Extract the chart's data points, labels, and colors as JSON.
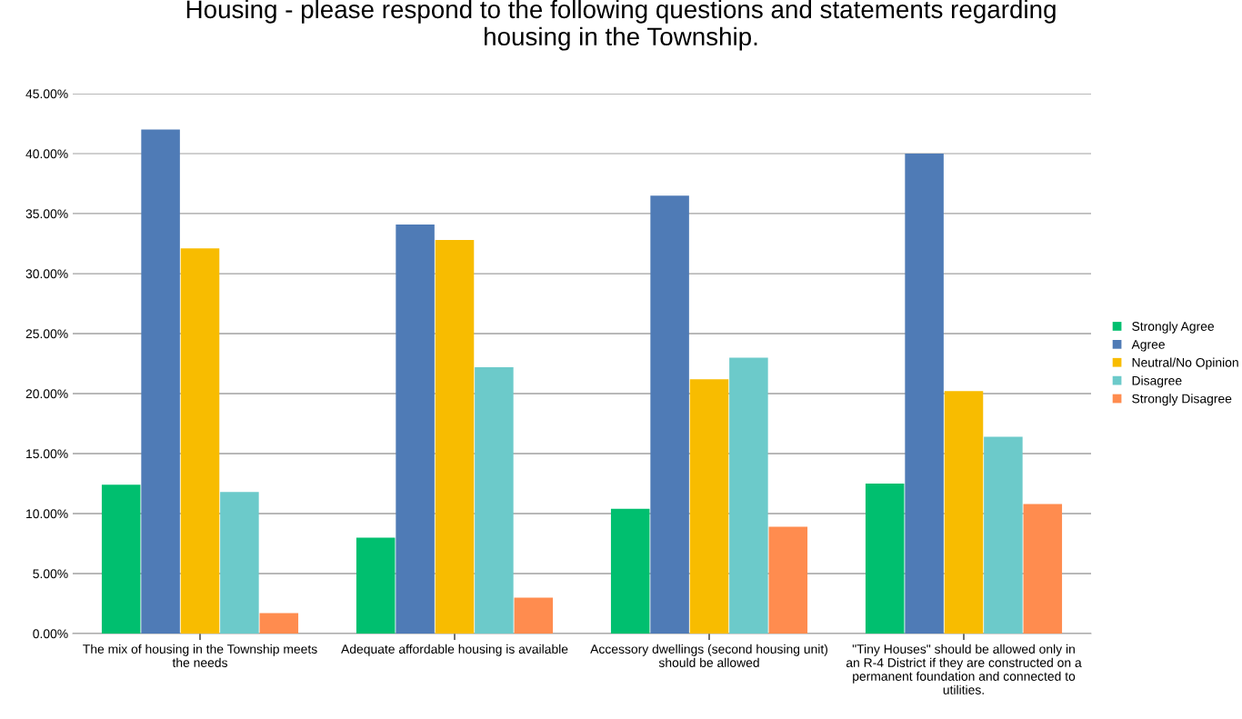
{
  "chart_data": {
    "type": "bar",
    "title": "Housing - please respond to the following questions and statements regarding\nhousing in the Township.",
    "categories": [
      "The mix of housing in the Township meets\nthe needs",
      "Adequate affordable housing is available",
      "Accessory dwellings (second housing unit)\nshould be allowed",
      "\"Tiny Houses\" should be allowed only in\nan R-4 District if they are constructed on a\npermanent foundation and connected to\nutilities."
    ],
    "series": [
      {
        "name": "Strongly Agree",
        "color": "#00bf6f",
        "values": [
          12.4,
          8.0,
          10.4,
          12.5
        ]
      },
      {
        "name": "Agree",
        "color": "#4f7bb6",
        "values": [
          42.0,
          34.1,
          36.5,
          40.0
        ]
      },
      {
        "name": "Neutral/No Opinion",
        "color": "#f8bc00",
        "values": [
          32.1,
          32.8,
          21.2,
          20.2
        ]
      },
      {
        "name": "Disagree",
        "color": "#6ccaca",
        "values": [
          11.8,
          22.2,
          23.0,
          16.4
        ]
      },
      {
        "name": "Strongly Disagree",
        "color": "#ff8c4f",
        "values": [
          1.7,
          3.0,
          8.9,
          10.8
        ]
      }
    ],
    "ylim": [
      0,
      45
    ],
    "yticks": [
      {
        "value": 0,
        "label": "0.00%"
      },
      {
        "value": 5,
        "label": "5.00%"
      },
      {
        "value": 10,
        "label": "10.00%"
      },
      {
        "value": 15,
        "label": "15.00%"
      },
      {
        "value": 20,
        "label": "20.00%"
      },
      {
        "value": 25,
        "label": "25.00%"
      },
      {
        "value": 30,
        "label": "30.00%"
      },
      {
        "value": 35,
        "label": "35.00%"
      },
      {
        "value": 40,
        "label": "40.00%"
      },
      {
        "value": 45,
        "label": "45.00%"
      }
    ],
    "grid": "y",
    "legend": "right"
  }
}
